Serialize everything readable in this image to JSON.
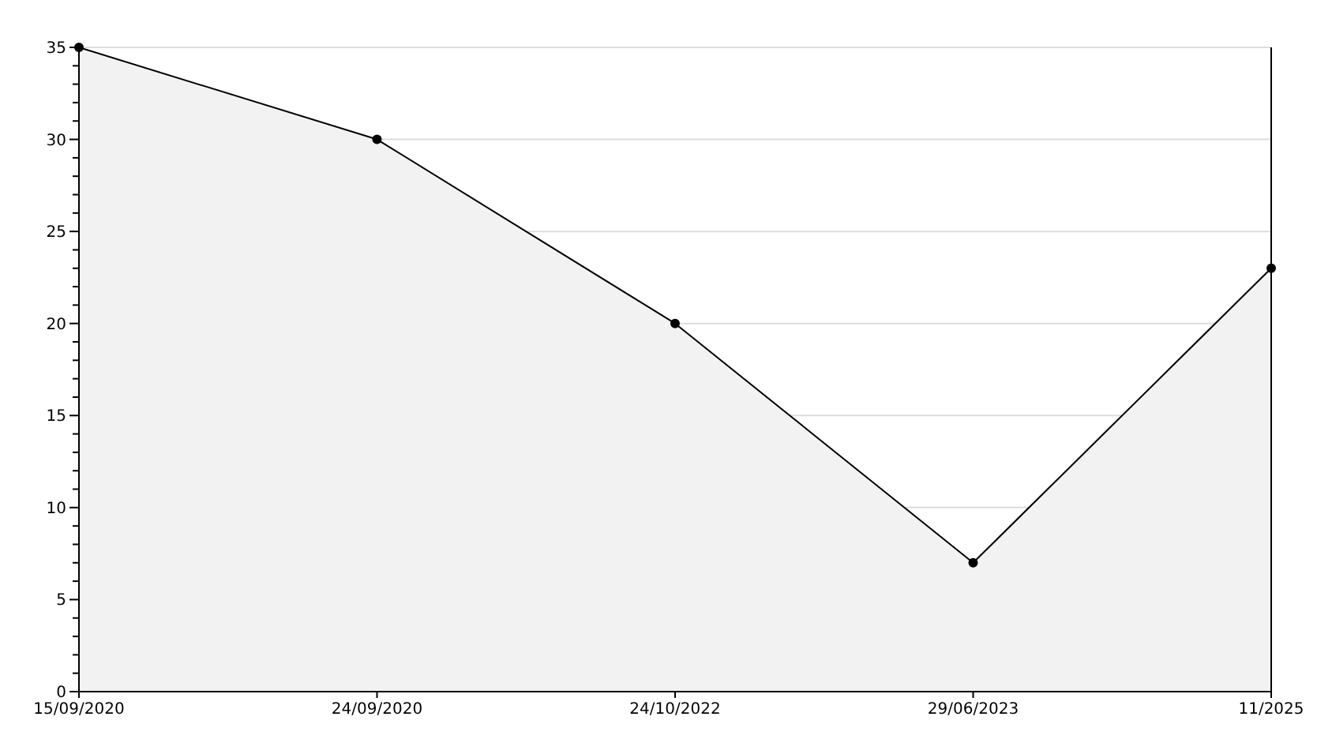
{
  "chart_data": {
    "type": "area",
    "categories": [
      "15/09/2020",
      "24/09/2020",
      "24/10/2022",
      "29/06/2023",
      "11/2025"
    ],
    "series": [
      {
        "color": "#000000",
        "values": [
          35,
          30,
          20,
          7,
          23
        ]
      }
    ],
    "ylim": [
      0,
      35
    ],
    "yticks": [
      0,
      {
        "value": 1,
        "label": null
      },
      {
        "value": 2,
        "label": null
      },
      {
        "value": 3,
        "label": null
      },
      {
        "value": 4,
        "label": null
      },
      5,
      {
        "value": 6,
        "label": null
      },
      {
        "value": 7,
        "label": null
      },
      {
        "value": 8,
        "label": null
      },
      {
        "value": 9,
        "label": null
      },
      10,
      {
        "value": 11,
        "label": null
      },
      {
        "value": 12,
        "label": null
      },
      {
        "value": 13,
        "label": null
      },
      {
        "value": 14,
        "label": null
      },
      15,
      {
        "value": 16,
        "label": null
      },
      {
        "value": 17,
        "label": null
      },
      {
        "value": 18,
        "label": null
      },
      {
        "value": 19,
        "label": null
      },
      20,
      {
        "value": 21,
        "label": null
      },
      {
        "value": 22,
        "label": null
      },
      {
        "value": 23,
        "label": null
      },
      {
        "value": 24,
        "label": null
      },
      25,
      {
        "value": 26,
        "label": null
      },
      {
        "value": 27,
        "label": null
      },
      {
        "value": 28,
        "label": null
      },
      {
        "value": 29,
        "label": null
      },
      30,
      {
        "value": 31,
        "label": null
      },
      {
        "value": 32,
        "label": null
      },
      {
        "value": 33,
        "label": null
      },
      {
        "value": 34,
        "label": null
      },
      35
    ],
    "grid": "y",
    "marker": "circle",
    "line_style": "solid"
  }
}
